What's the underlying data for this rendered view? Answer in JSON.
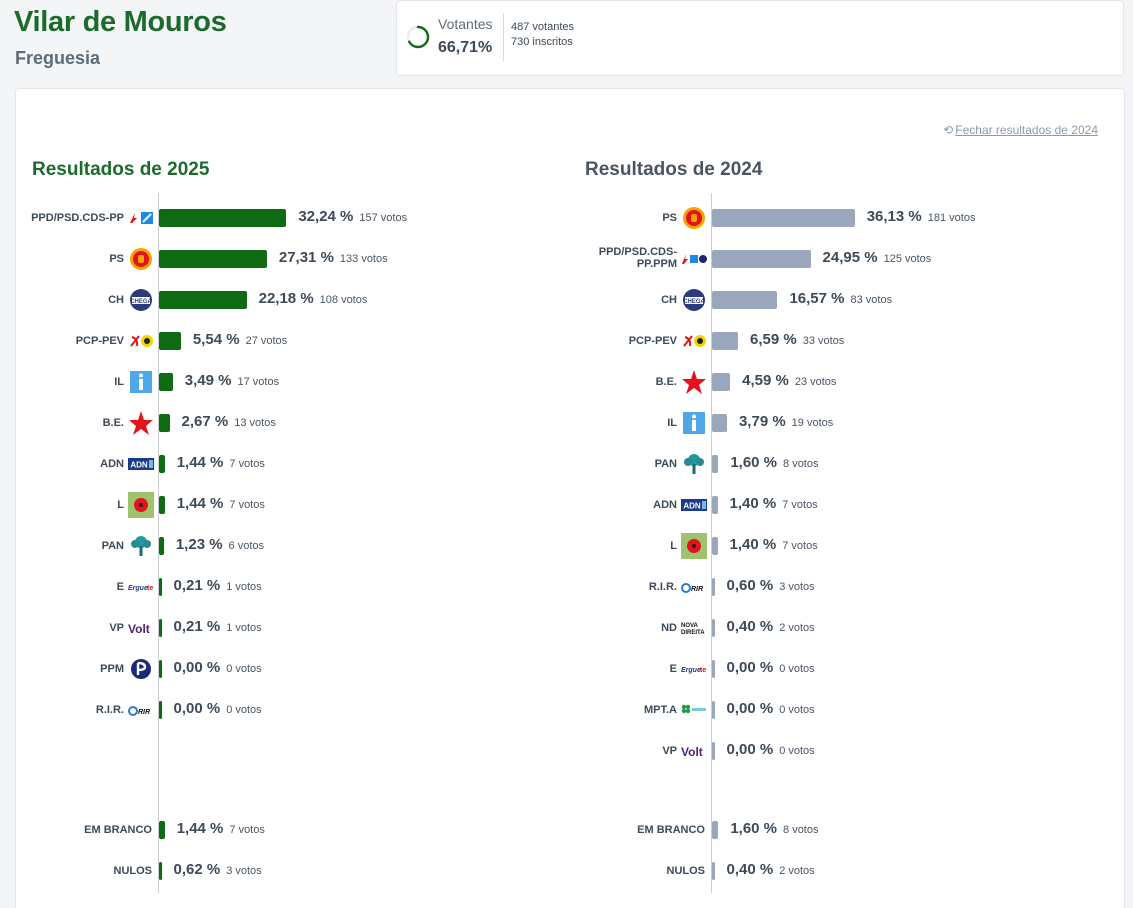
{
  "header": {
    "title": "Vilar de Mouros",
    "subtitle": "Freguesia"
  },
  "stats": {
    "label": "Votantes",
    "percent": "66,71%",
    "percent_value": 0.6671,
    "voters": "487 votantes",
    "registered": "730 inscritos"
  },
  "close_link": "Fechar resultados de 2024",
  "colors": {
    "green": "#0e6a13",
    "slate": "#9aa6bb",
    "title_green": "#1d6b2c"
  },
  "results_2025": {
    "title": "Resultados de 2025",
    "parties": [
      {
        "name": "PPD/PSD.CDS-PP",
        "logo": "psd-cds-logo",
        "pct": 32.24,
        "pct_label": "32,24 %",
        "votes": "157 votos"
      },
      {
        "name": "PS",
        "logo": "ps-logo",
        "pct": 27.31,
        "pct_label": "27,31 %",
        "votes": "133 votos"
      },
      {
        "name": "CH",
        "logo": "chega-logo",
        "pct": 22.18,
        "pct_label": "22,18 %",
        "votes": "108 votos"
      },
      {
        "name": "PCP-PEV",
        "logo": "cdu-logo",
        "pct": 5.54,
        "pct_label": "5,54 %",
        "votes": "27 votos"
      },
      {
        "name": "IL",
        "logo": "il-logo",
        "pct": 3.49,
        "pct_label": "3,49 %",
        "votes": "17 votos"
      },
      {
        "name": "B.E.",
        "logo": "be-logo",
        "pct": 2.67,
        "pct_label": "2,67 %",
        "votes": "13 votos"
      },
      {
        "name": "ADN",
        "logo": "adn-logo",
        "pct": 1.44,
        "pct_label": "1,44 %",
        "votes": "7 votos"
      },
      {
        "name": "L",
        "logo": "livre-logo",
        "pct": 1.44,
        "pct_label": "1,44 %",
        "votes": "7 votos"
      },
      {
        "name": "PAN",
        "logo": "pan-logo",
        "pct": 1.23,
        "pct_label": "1,23 %",
        "votes": "6 votos"
      },
      {
        "name": "E",
        "logo": "ergue-te-logo",
        "pct": 0.21,
        "pct_label": "0,21 %",
        "votes": "1 votos"
      },
      {
        "name": "VP",
        "logo": "volt-logo",
        "pct": 0.21,
        "pct_label": "0,21 %",
        "votes": "1 votos"
      },
      {
        "name": "PPM",
        "logo": "ppm-logo",
        "pct": 0.0,
        "pct_label": "0,00 %",
        "votes": "0 votos"
      },
      {
        "name": "R.I.R.",
        "logo": "rir-logo",
        "pct": 0.0,
        "pct_label": "0,00 %",
        "votes": "0 votos"
      }
    ],
    "blank": {
      "name": "EM BRANCO",
      "pct": 1.44,
      "pct_label": "1,44 %",
      "votes": "7 votos"
    },
    "null": {
      "name": "NULOS",
      "pct": 0.62,
      "pct_label": "0,62 %",
      "votes": "3 votos"
    }
  },
  "results_2024": {
    "title": "Resultados de 2024",
    "parties": [
      {
        "name": "PS",
        "logo": "ps-logo",
        "pct": 36.13,
        "pct_label": "36,13 %",
        "votes": "181 votos"
      },
      {
        "name": "PPD/PSD.CDS-PP.PPM",
        "logo": "psd-cds-ppm-logo",
        "pct": 24.95,
        "pct_label": "24,95 %",
        "votes": "125 votos"
      },
      {
        "name": "CH",
        "logo": "chega-logo",
        "pct": 16.57,
        "pct_label": "16,57 %",
        "votes": "83 votos"
      },
      {
        "name": "PCP-PEV",
        "logo": "cdu-logo",
        "pct": 6.59,
        "pct_label": "6,59 %",
        "votes": "33 votos"
      },
      {
        "name": "B.E.",
        "logo": "be-logo",
        "pct": 4.59,
        "pct_label": "4,59 %",
        "votes": "23 votos"
      },
      {
        "name": "IL",
        "logo": "il-logo",
        "pct": 3.79,
        "pct_label": "3,79 %",
        "votes": "19 votos"
      },
      {
        "name": "PAN",
        "logo": "pan-logo",
        "pct": 1.6,
        "pct_label": "1,60 %",
        "votes": "8 votos"
      },
      {
        "name": "ADN",
        "logo": "adn-logo",
        "pct": 1.4,
        "pct_label": "1,40 %",
        "votes": "7 votos"
      },
      {
        "name": "L",
        "logo": "livre-logo",
        "pct": 1.4,
        "pct_label": "1,40 %",
        "votes": "7 votos"
      },
      {
        "name": "R.I.R.",
        "logo": "rir-logo",
        "pct": 0.6,
        "pct_label": "0,60 %",
        "votes": "3 votos"
      },
      {
        "name": "ND",
        "logo": "nova-direita-logo",
        "pct": 0.4,
        "pct_label": "0,40 %",
        "votes": "2 votos"
      },
      {
        "name": "E",
        "logo": "ergue-te-logo",
        "pct": 0.0,
        "pct_label": "0,00 %",
        "votes": "0 votos"
      },
      {
        "name": "MPT.A",
        "logo": "mpt-logo",
        "pct": 0.0,
        "pct_label": "0,00 %",
        "votes": "0 votos"
      },
      {
        "name": "VP",
        "logo": "volt-logo",
        "pct": 0.0,
        "pct_label": "0,00 %",
        "votes": "0 votos"
      }
    ],
    "blank": {
      "name": "EM BRANCO",
      "pct": 1.6,
      "pct_label": "1,60 %",
      "votes": "8 votos"
    },
    "null": {
      "name": "NULOS",
      "pct": 0.4,
      "pct_label": "0,40 %",
      "votes": "2 votos"
    }
  }
}
